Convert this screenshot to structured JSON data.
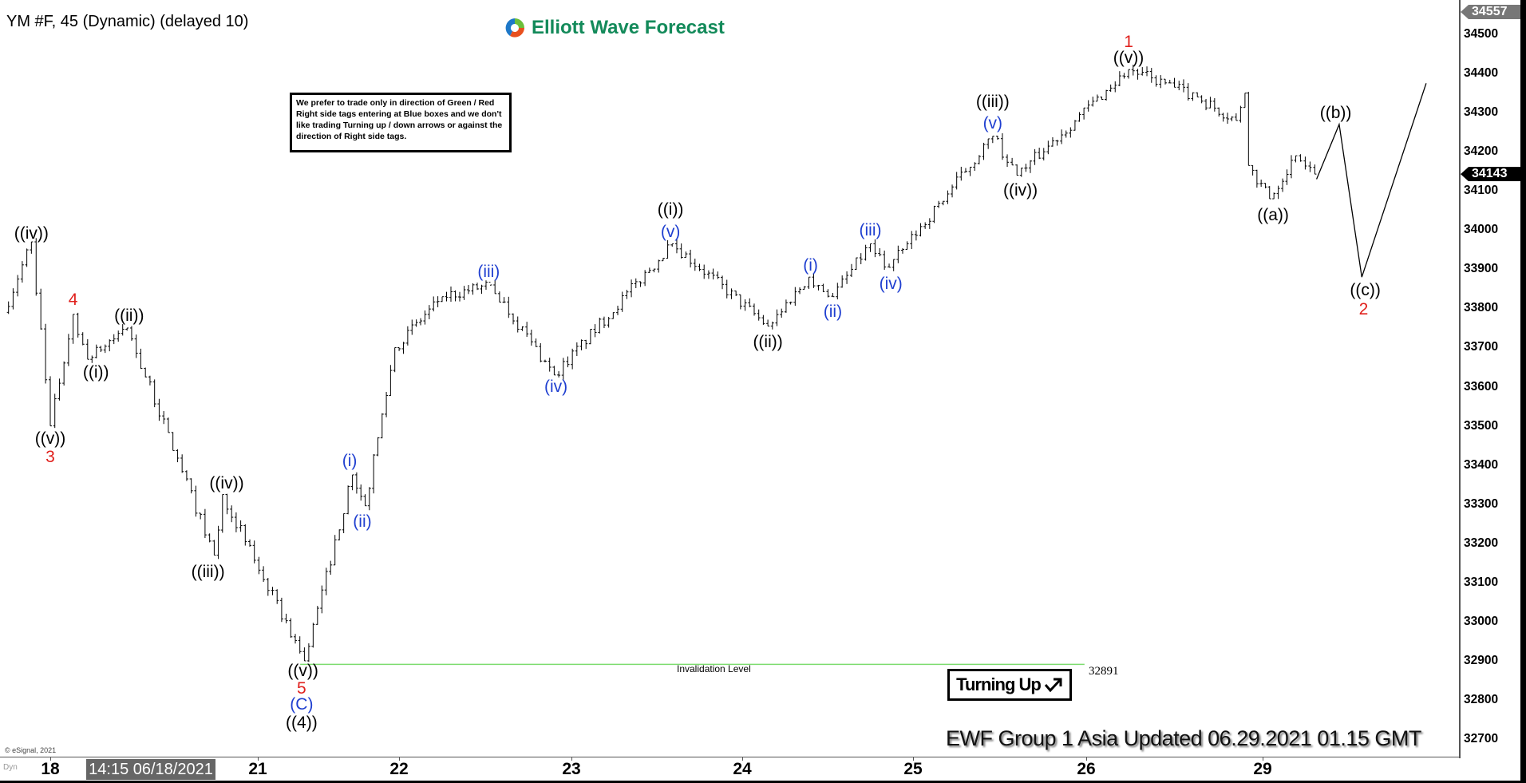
{
  "header": {
    "title": "YM #F, 45 (Dynamic) (delayed 10)",
    "logo_text": "Elliott Wave Forecast"
  },
  "note": "We prefer to trade only in direction of Green / Red Right side tags entering at Blue boxes and we don't like trading Turning up / down arrows or against the direction of Right side tags.",
  "turning": {
    "label": "Turning Up",
    "icon": "arrow-up-right-icon"
  },
  "footer": "EWF Group 1 Asia Updated 06.29.2021 01.15 GMT",
  "copyright": "© eSignal, 2021",
  "date_axis": {
    "dyn": "Dyn",
    "cursor_label": "14:15 06/18/2021"
  },
  "colors": {
    "bars": "#000000",
    "wave_black": "#000000",
    "wave_blue": "#1f3fd0",
    "wave_red": "#e0201c",
    "invalidation": "#7ddc6f",
    "price_tag_current": "#000000",
    "price_tag_high": "#777777"
  },
  "chart_data": {
    "type": "ohlc-bar",
    "title": "YM #F, 45 (Dynamic) (delayed 10)",
    "x_ticks": [
      "18",
      "21",
      "22",
      "23",
      "24",
      "25",
      "26",
      "29"
    ],
    "y_ticks": [
      34500,
      34400,
      34300,
      34200,
      34100,
      34000,
      33900,
      33800,
      33700,
      33600,
      33500,
      33400,
      33300,
      33200,
      33100,
      33000,
      32900,
      32800,
      32700
    ],
    "ylim": [
      32650,
      34560
    ],
    "grid": false,
    "price_tags": {
      "high": "34557",
      "current": "34143"
    },
    "swing_points": [
      {
        "x": 17.73,
        "y": 33790
      },
      {
        "x": 17.89,
        "y": 33970
      },
      {
        "x": 18.0,
        "y": 33500
      },
      {
        "x": 18.11,
        "y": 33785
      },
      {
        "x": 18.18,
        "y": 33670
      },
      {
        "x": 18.37,
        "y": 33750
      },
      {
        "x": 18.79,
        "y": 33170
      },
      {
        "x": 18.83,
        "y": 33325
      },
      {
        "x": 21.33,
        "y": 32900
      },
      {
        "x": 21.67,
        "y": 33375
      },
      {
        "x": 21.76,
        "y": 33296
      },
      {
        "x": 21.97,
        "y": 33700
      },
      {
        "x": 22.25,
        "y": 33830
      },
      {
        "x": 22.53,
        "y": 33860
      },
      {
        "x": 22.9,
        "y": 33630
      },
      {
        "x": 23.59,
        "y": 33965
      },
      {
        "x": 24.15,
        "y": 33755
      },
      {
        "x": 24.39,
        "y": 33880
      },
      {
        "x": 24.53,
        "y": 33830
      },
      {
        "x": 24.75,
        "y": 33965
      },
      {
        "x": 24.86,
        "y": 33905
      },
      {
        "x": 25.46,
        "y": 34240
      },
      {
        "x": 25.6,
        "y": 34140
      },
      {
        "x": 26.24,
        "y": 34410
      },
      {
        "x": 26.63,
        "y": 34340
      },
      {
        "x": 26.85,
        "y": 34280
      },
      {
        "x": 26.9,
        "y": 34350
      },
      {
        "x": 26.92,
        "y": 34165
      },
      {
        "x": 29.04,
        "y": 34080
      },
      {
        "x": 29.19,
        "y": 34190
      },
      {
        "x": 29.3,
        "y": 34143
      }
    ],
    "projection": [
      {
        "x": 29.31,
        "y": 34130
      },
      {
        "x": 29.44,
        "y": 34270
      },
      {
        "x": 29.57,
        "y": 33880
      },
      {
        "x": 29.94,
        "y": 34375
      }
    ],
    "invalidation": {
      "label": "Invalidation Level",
      "value": "32891",
      "price": 32891,
      "x_start": 21.3,
      "x_end": 25.99
    },
    "wave_labels": [
      {
        "text": "((iv))",
        "color": "black",
        "x": 17.89,
        "y": 33991
      },
      {
        "text": "4",
        "color": "red",
        "x": 18.11,
        "y": 33822
      },
      {
        "text": "((ii))",
        "color": "black",
        "x": 18.38,
        "y": 33780
      },
      {
        "text": "((i))",
        "color": "black",
        "x": 18.22,
        "y": 33636
      },
      {
        "text": "((v))",
        "color": "black",
        "x": 18.0,
        "y": 33467
      },
      {
        "text": "3",
        "color": "red",
        "x": 18.0,
        "y": 33420
      },
      {
        "text": "((iv))",
        "color": "black",
        "x": 18.85,
        "y": 33353
      },
      {
        "text": "((iii))",
        "color": "black",
        "x": 18.76,
        "y": 33127
      },
      {
        "text": "(i)",
        "color": "blue",
        "x": 21.65,
        "y": 33410
      },
      {
        "text": "(ii)",
        "color": "blue",
        "x": 21.74,
        "y": 33254
      },
      {
        "text": "((v))",
        "color": "black",
        "x": 21.32,
        "y": 32874
      },
      {
        "text": "5",
        "color": "red",
        "x": 21.31,
        "y": 32829
      },
      {
        "text": "(C)",
        "color": "blue",
        "x": 21.31,
        "y": 32787
      },
      {
        "text": "((4))",
        "color": "black",
        "x": 21.31,
        "y": 32740
      },
      {
        "text": "(iii)",
        "color": "blue",
        "x": 22.52,
        "y": 33892
      },
      {
        "text": "(iv)",
        "color": "blue",
        "x": 22.91,
        "y": 33599
      },
      {
        "text": "((i))",
        "color": "black",
        "x": 23.58,
        "y": 34051
      },
      {
        "text": "(v)",
        "color": "blue",
        "x": 23.58,
        "y": 33994
      },
      {
        "text": "((ii))",
        "color": "black",
        "x": 24.15,
        "y": 33713
      },
      {
        "text": "(i)",
        "color": "blue",
        "x": 24.4,
        "y": 33909
      },
      {
        "text": "(ii)",
        "color": "blue",
        "x": 24.53,
        "y": 33790
      },
      {
        "text": "(iii)",
        "color": "blue",
        "x": 24.75,
        "y": 33999
      },
      {
        "text": "(iv)",
        "color": "blue",
        "x": 24.87,
        "y": 33862
      },
      {
        "text": "((iii))",
        "color": "black",
        "x": 25.46,
        "y": 34326
      },
      {
        "text": "(v)",
        "color": "blue",
        "x": 25.46,
        "y": 34272
      },
      {
        "text": "((iv))",
        "color": "black",
        "x": 25.62,
        "y": 34100
      },
      {
        "text": "1",
        "color": "red",
        "x": 26.24,
        "y": 34480
      },
      {
        "text": "((v))",
        "color": "black",
        "x": 26.24,
        "y": 34438
      },
      {
        "text": "((a))",
        "color": "black",
        "x": 29.06,
        "y": 34038
      },
      {
        "text": "((b))",
        "color": "black",
        "x": 29.42,
        "y": 34299
      },
      {
        "text": "((c))",
        "color": "black",
        "x": 29.59,
        "y": 33845
      },
      {
        "text": "2",
        "color": "red",
        "x": 29.58,
        "y": 33797
      }
    ]
  }
}
